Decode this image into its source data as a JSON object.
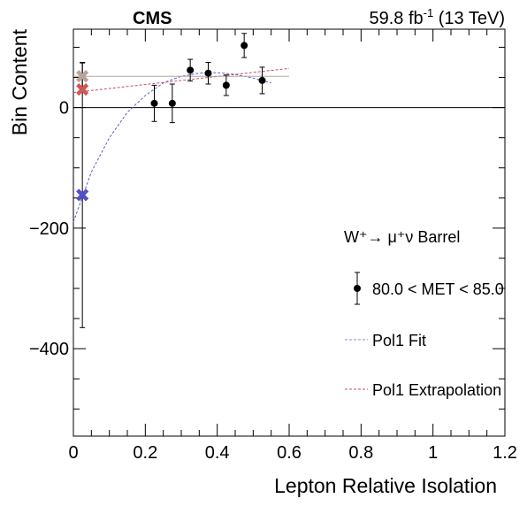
{
  "header": {
    "experiment": "CMS",
    "lumi_value": "59.8 fb",
    "lumi_exp": "-1",
    "lumi_energy": " (13 TeV)"
  },
  "chart_data": {
    "type": "scatter",
    "xlabel": "Lepton Relative Isolation",
    "ylabel": "Bin Content",
    "xlim": [
      0,
      1.2
    ],
    "ylim": [
      -545,
      130
    ],
    "x_ticks": [
      0,
      0.2,
      0.4,
      0.6,
      0.8,
      1,
      1.2
    ],
    "x_tick_labels": [
      "0",
      "0.2",
      "0.4",
      "0.6",
      "0.8",
      "1",
      "1.2"
    ],
    "y_ticks": [
      -400,
      -200,
      0
    ],
    "y_tick_labels": [
      "−400",
      "−200",
      "0"
    ],
    "zero_line": true,
    "grid": false,
    "data_points": [
      {
        "x": 0.225,
        "y": 7,
        "err": 30
      },
      {
        "x": 0.275,
        "y": 7,
        "err": 32
      },
      {
        "x": 0.325,
        "y": 62,
        "err": 18
      },
      {
        "x": 0.375,
        "y": 57,
        "err": 18
      },
      {
        "x": 0.425,
        "y": 37,
        "err": 17
      },
      {
        "x": 0.475,
        "y": 103,
        "err": 20
      },
      {
        "x": 0.525,
        "y": 45,
        "err": 22
      }
    ],
    "extrapolated_points": [
      {
        "x": 0.025,
        "y": -145,
        "err": 220,
        "color": "#5050c8"
      },
      {
        "x": 0.025,
        "y": 30,
        "err": 0,
        "color": "#d05858"
      },
      {
        "x": 0.025,
        "y": 52,
        "err": 22,
        "color": "#b8a39c"
      }
    ],
    "fit_curves": [
      {
        "style": "dashed",
        "color": "#5a5ad2",
        "x": [
          0.0,
          0.05,
          0.1,
          0.15,
          0.2,
          0.25,
          0.3,
          0.35,
          0.4,
          0.45,
          0.5,
          0.55
        ],
        "y": [
          -190,
          -107,
          -50,
          -8,
          20,
          41,
          52,
          57,
          58,
          55,
          49,
          41
        ]
      },
      {
        "style": "dashed",
        "color": "#c84c6a",
        "x": [
          0.0,
          0.6
        ],
        "y": [
          25,
          65
        ]
      },
      {
        "style": "solid",
        "color": "#b5a8a0",
        "x": [
          0.0,
          0.6
        ],
        "y": [
          52,
          52
        ]
      }
    ],
    "legend": {
      "placement": "right",
      "title": "W⁺→ μ⁺ν Barrel",
      "entries": [
        {
          "label": "80.0 < MET < 85.0",
          "kind": "marker"
        },
        {
          "label": "Pol1 Fit",
          "kind": "line",
          "color": "#8888cc"
        },
        {
          "label": "Pol1 Extrapolation",
          "kind": "line",
          "color": "#c84c6a"
        }
      ]
    },
    "colors": {
      "data": "#000000",
      "fit": "#5a5ad2",
      "extrapolation": "#c84c6a",
      "flat": "#b5a8a0"
    }
  }
}
